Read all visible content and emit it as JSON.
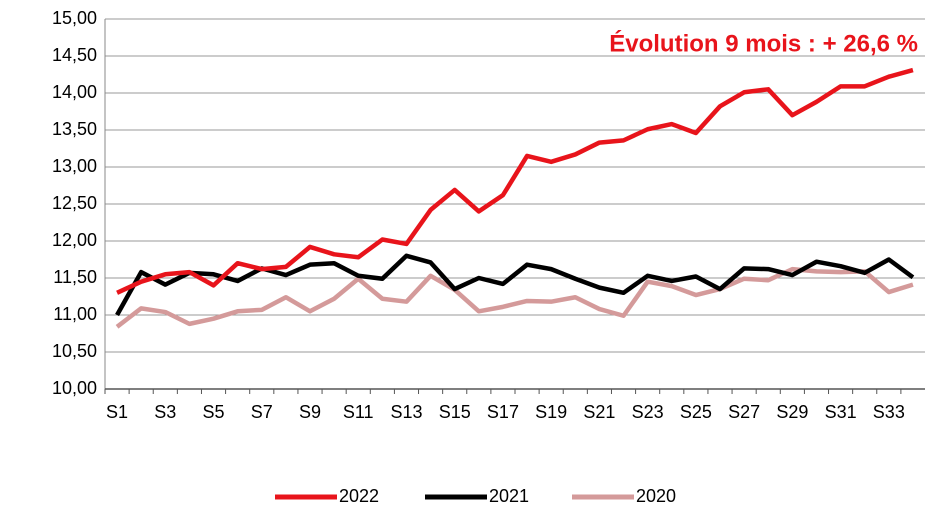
{
  "chart_data": {
    "type": "line",
    "annotation": "Évolution 9 mois : + 26,6 %",
    "annotation_color": "#e8141b",
    "categories": [
      "S1",
      null,
      "S3",
      null,
      "S5",
      null,
      "S7",
      null,
      "S9",
      null,
      "S11",
      null,
      "S13",
      null,
      "S15",
      null,
      "S17",
      null,
      "S19",
      null,
      "S21",
      null,
      "S23",
      null,
      "S25",
      null,
      "S27",
      null,
      "S29",
      null,
      "S31",
      null,
      "S33",
      null
    ],
    "series": [
      {
        "name": "2022",
        "color": "#e8141b",
        "values": [
          11.3,
          11.45,
          11.55,
          11.58,
          11.4,
          11.7,
          11.62,
          11.65,
          11.92,
          11.82,
          11.78,
          12.02,
          11.96,
          12.42,
          12.69,
          12.4,
          12.62,
          13.15,
          13.07,
          13.17,
          13.33,
          13.36,
          13.51,
          13.58,
          13.46,
          13.82,
          14.01,
          14.05,
          13.7,
          13.88,
          14.09,
          14.09,
          14.22,
          14.31
        ]
      },
      {
        "name": "2021",
        "color": "#000000",
        "values": [
          11.0,
          11.58,
          11.41,
          11.57,
          11.55,
          11.46,
          11.63,
          11.54,
          11.68,
          11.7,
          11.53,
          11.49,
          11.8,
          11.71,
          11.35,
          11.5,
          11.42,
          11.68,
          11.62,
          11.49,
          11.37,
          11.3,
          11.53,
          11.46,
          11.52,
          11.35,
          11.63,
          11.62,
          11.54,
          11.72,
          11.66,
          11.57,
          11.75,
          11.51
        ]
      },
      {
        "name": "2020",
        "color": "#d49a9a",
        "values": [
          10.84,
          11.09,
          11.04,
          10.88,
          10.95,
          11.05,
          11.07,
          11.24,
          11.05,
          11.22,
          11.49,
          11.22,
          11.18,
          11.53,
          11.34,
          11.05,
          11.11,
          11.19,
          11.18,
          11.24,
          11.08,
          10.99,
          11.45,
          11.39,
          11.27,
          11.35,
          11.49,
          11.47,
          11.62,
          11.59,
          11.58,
          11.59,
          11.31,
          11.41
        ]
      }
    ],
    "ylim": [
      10,
      15
    ],
    "yticks": [
      {
        "value": 10,
        "label": "10,00"
      },
      {
        "value": 10.5,
        "label": "10,50"
      },
      {
        "value": 11,
        "label": "11,00"
      },
      {
        "value": 11.5,
        "label": "11,50"
      },
      {
        "value": 12,
        "label": "12,00"
      },
      {
        "value": 12.5,
        "label": "12,50"
      },
      {
        "value": 13,
        "label": "13,00"
      },
      {
        "value": 13.5,
        "label": "13,50"
      },
      {
        "value": 14,
        "label": "14,00"
      },
      {
        "value": 14.5,
        "label": "14,50"
      },
      {
        "value": 15,
        "label": "15,00"
      }
    ],
    "grid": true,
    "legend": "bottom"
  }
}
